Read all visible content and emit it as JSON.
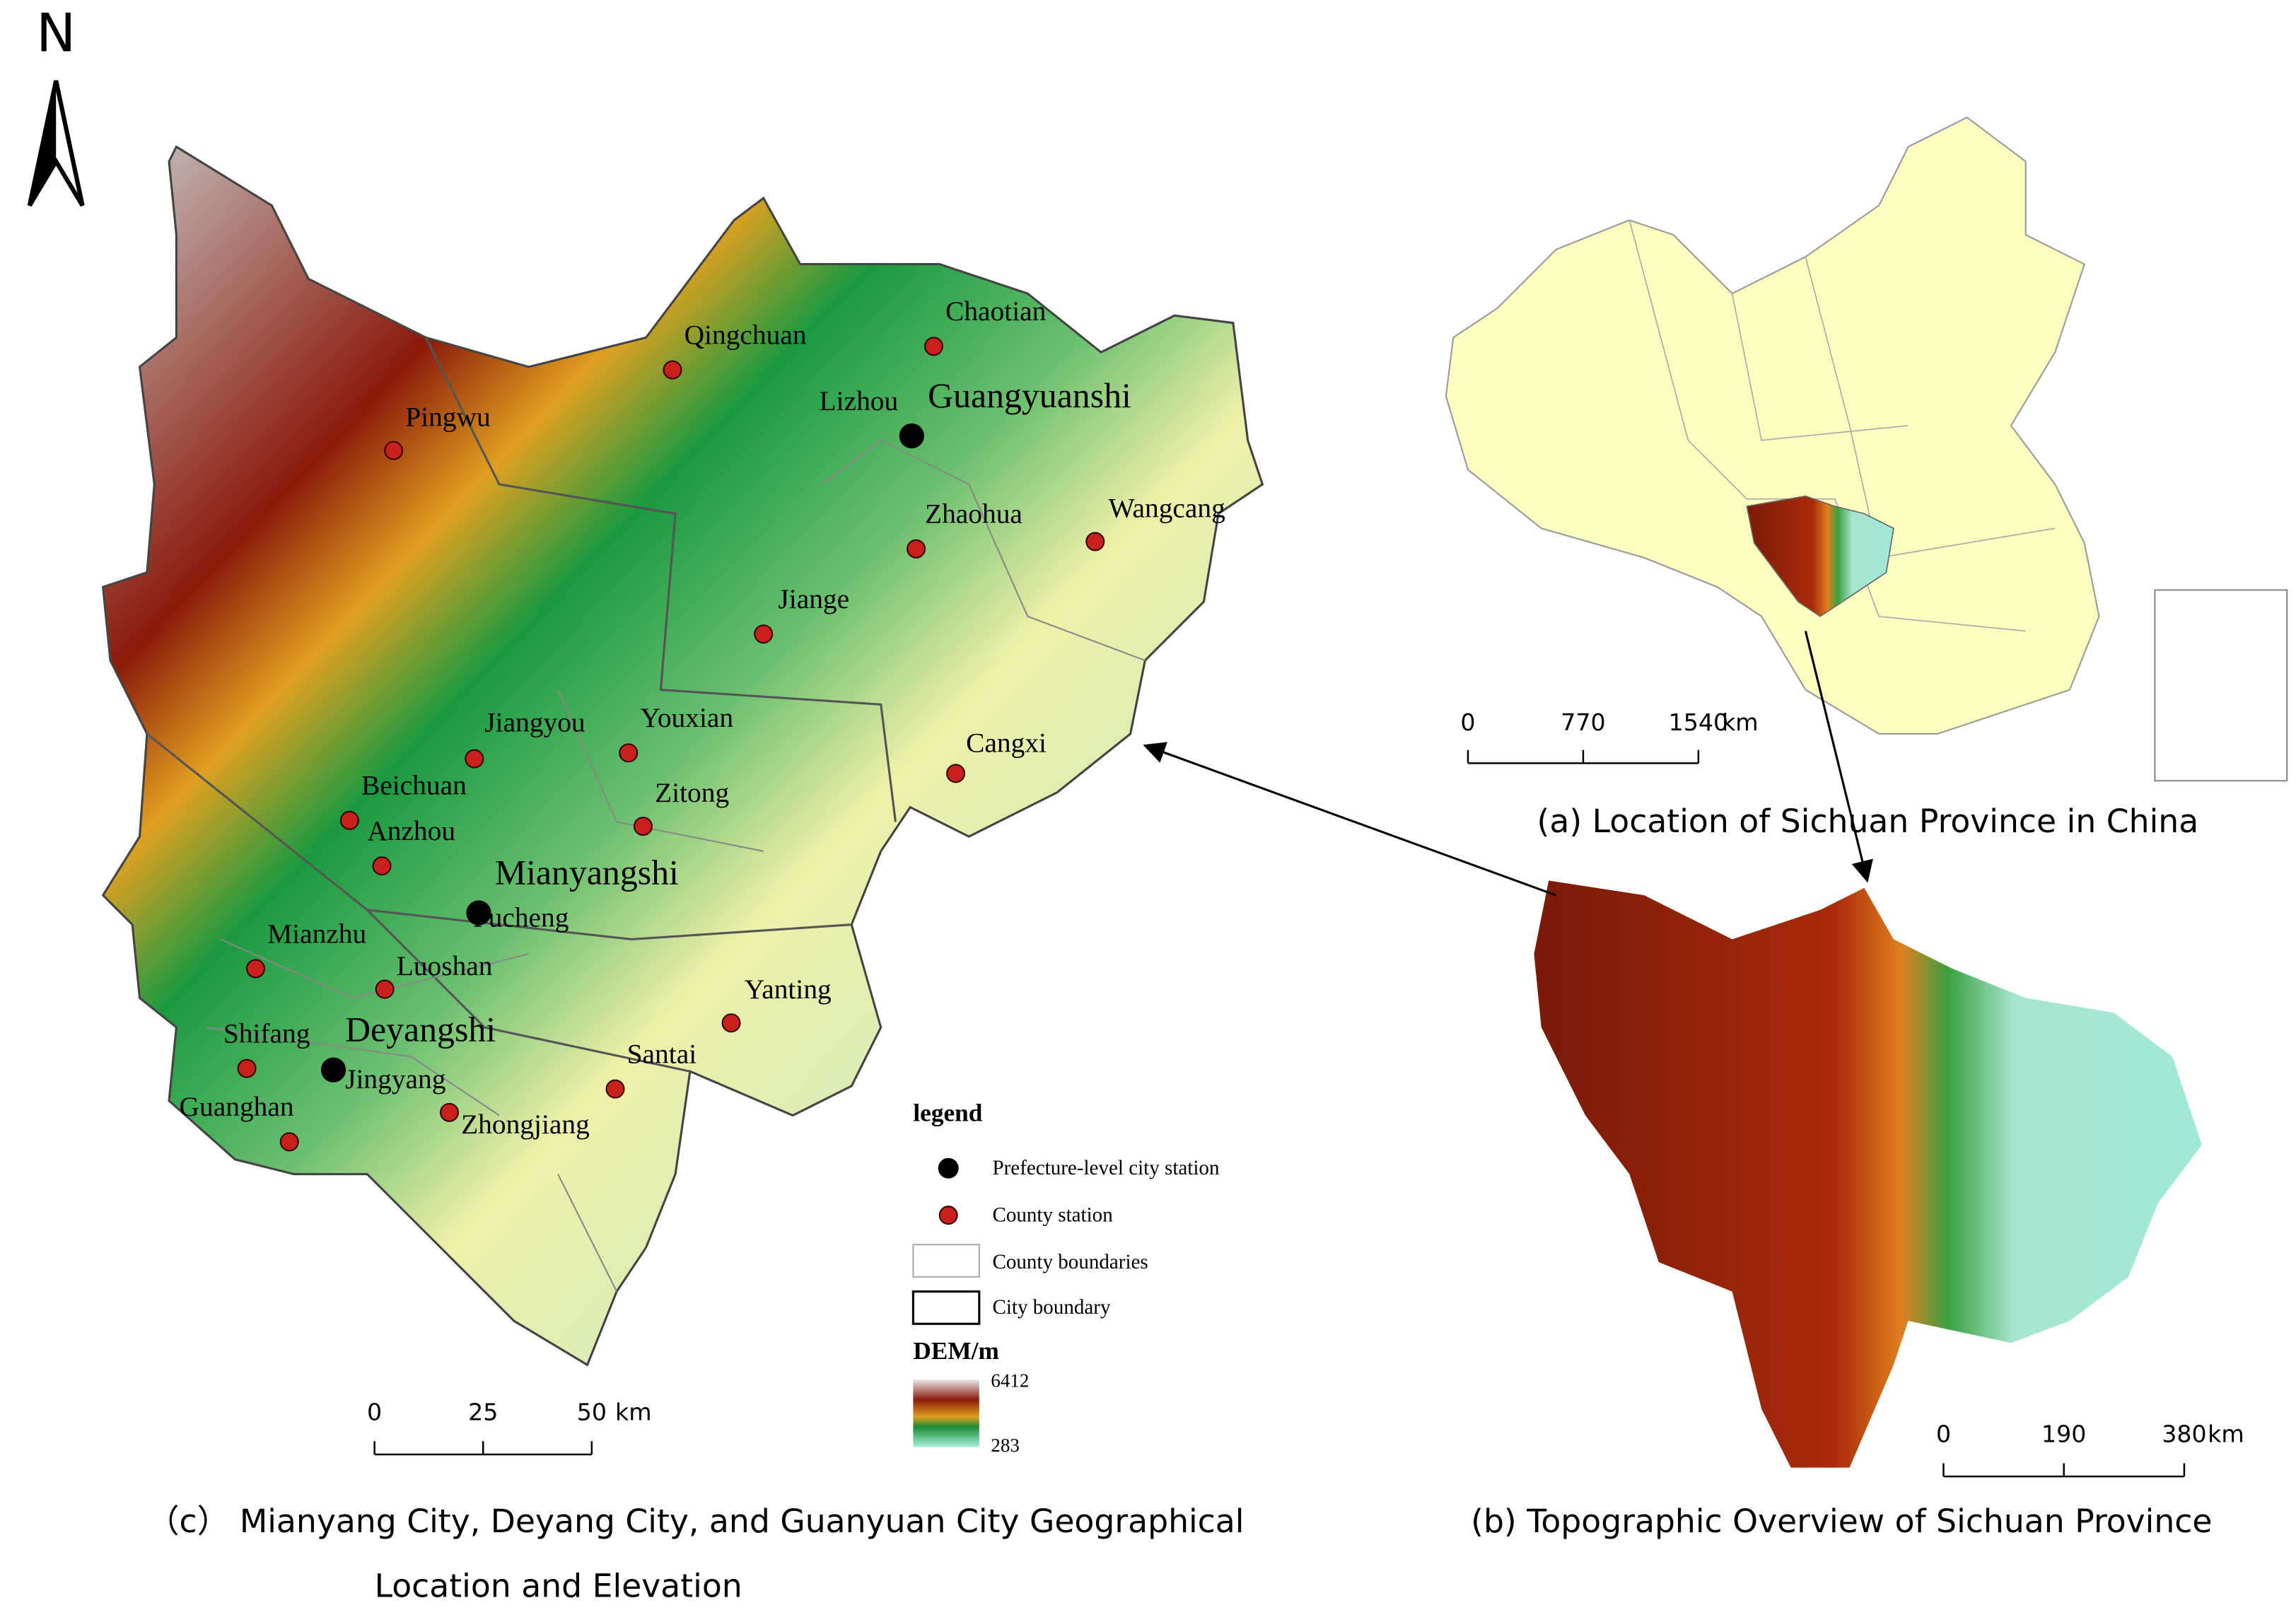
{
  "north": "N",
  "map_c": {
    "prefecture_stations": [
      "Lizhou",
      "Fucheng",
      "Jingyang"
    ],
    "county_stations": [
      "Qingchuan",
      "Chaotian",
      "Pingwu",
      "Zhaohua",
      "Wangcang",
      "Jiange",
      "Jiangyou",
      "Youxian",
      "Cangxi",
      "Beichuan",
      "Zitong",
      "Anzhou",
      "Mianzhu",
      "Luoshan",
      "Yanting",
      "Shifang",
      "Guanghan",
      "Zhongjiang",
      "Santai"
    ],
    "cities": [
      "Guangyuanshi",
      "Mianyangshi",
      "Deyangshi"
    ],
    "legend": {
      "title": "legend",
      "items": [
        "Prefecture-level city station",
        "County station",
        "County boundaries",
        "City boundary"
      ],
      "dem_title": "DEM/m",
      "dem_max": 6412,
      "dem_min": 283
    },
    "scale": {
      "ticks": [
        0,
        25,
        50
      ],
      "unit": "km"
    },
    "caption_lines": [
      "（c）  Mianyang City, Deyang City, and Guanyuan City Geographical",
      "Location and Elevation"
    ]
  },
  "map_a": {
    "scale": {
      "ticks": [
        0,
        770,
        1540
      ],
      "unit": "km"
    },
    "caption": "(a)  Location of Sichuan Province in China"
  },
  "map_b": {
    "scale": {
      "ticks": [
        0,
        190,
        380
      ],
      "unit": "km"
    },
    "caption": "(b)  Topographic Overview of Sichuan Province"
  }
}
